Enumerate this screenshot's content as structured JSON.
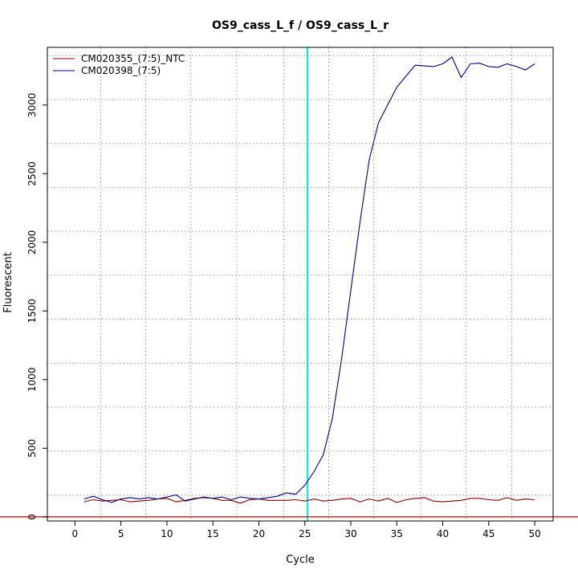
{
  "chart_data": {
    "type": "line",
    "title": "OS9_cass_L_f / OS9_cass_L_r",
    "xlabel": "Cycle",
    "ylabel": "Fluorescent",
    "xlim": [
      -3,
      52
    ],
    "ylim": [
      -30,
      3420
    ],
    "x_ticks": [
      0,
      5,
      10,
      15,
      20,
      25,
      30,
      35,
      40,
      45,
      50
    ],
    "y_ticks": [
      0,
      500,
      1000,
      1500,
      2000,
      2500,
      3000
    ],
    "x_grid": [
      2.8,
      7.7,
      12.6,
      17.6,
      22.7,
      27.6,
      32.5,
      37.6,
      42.5,
      47.5
    ],
    "y_grid": [
      160,
      480,
      800,
      1120,
      1440,
      1760,
      2080,
      2400,
      2720,
      3040,
      3360
    ],
    "grid": true,
    "legend_position": "top-left",
    "threshold_cycle": 25.3,
    "threshold_color": "#00e0e0",
    "baseline_value": 0,
    "baseline_color": "#cc0000",
    "series": [
      {
        "name": "CM020355_(7:5)_NTC",
        "color": "#8b0000",
        "x": [
          1,
          2,
          3,
          4,
          5,
          6,
          7,
          8,
          9,
          10,
          11,
          12,
          13,
          14,
          15,
          16,
          17,
          18,
          19,
          20,
          21,
          22,
          23,
          24,
          25,
          26,
          27,
          28,
          29,
          30,
          31,
          32,
          33,
          34,
          35,
          36,
          37,
          38,
          39,
          40,
          41,
          42,
          43,
          44,
          45,
          46,
          47,
          48,
          49,
          50
        ],
        "y": [
          110,
          125,
          115,
          120,
          125,
          110,
          115,
          120,
          130,
          135,
          110,
          120,
          135,
          140,
          135,
          120,
          120,
          100,
          125,
          130,
          120,
          120,
          120,
          125,
          115,
          130,
          115,
          120,
          130,
          135,
          110,
          130,
          115,
          135,
          105,
          125,
          135,
          140,
          115,
          110,
          115,
          120,
          135,
          135,
          125,
          120,
          140,
          120,
          130,
          125
        ]
      },
      {
        "name": "CM020398_(7:5)",
        "color": "#000080",
        "x": [
          1,
          2,
          3,
          4,
          5,
          6,
          7,
          8,
          9,
          10,
          11,
          12,
          13,
          14,
          15,
          16,
          17,
          18,
          19,
          20,
          21,
          22,
          23,
          24,
          25,
          26,
          27,
          28,
          29,
          30,
          31,
          32,
          33,
          34,
          35,
          36,
          37,
          38,
          39,
          40,
          41,
          42,
          43,
          44,
          45,
          46,
          47,
          48,
          49,
          50
        ],
        "y": [
          130,
          150,
          125,
          105,
          130,
          140,
          130,
          140,
          130,
          145,
          160,
          115,
          130,
          145,
          135,
          145,
          125,
          145,
          135,
          130,
          140,
          150,
          175,
          165,
          230,
          330,
          450,
          720,
          1150,
          1650,
          2150,
          2600,
          2870,
          3000,
          3130,
          3210,
          3290,
          3285,
          3280,
          3300,
          3350,
          3200,
          3300,
          3305,
          3280,
          3275,
          3300,
          3280,
          3255,
          3300
        ]
      }
    ]
  }
}
